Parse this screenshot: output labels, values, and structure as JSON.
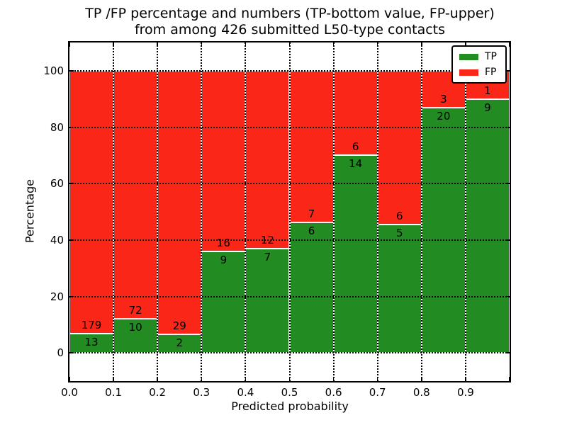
{
  "title": {
    "line1": "TP /FP percentage and numbers (TP-bottom value, FP-upper)",
    "line2": "from among 426 submitted L50-type contacts"
  },
  "axes": {
    "xlabel": "Predicted probability",
    "ylabel": "Percentage",
    "xtick_labels": [
      "0.0",
      "0.1",
      "0.2",
      "0.3",
      "0.4",
      "0.5",
      "0.6",
      "0.7",
      "0.8",
      "0.9"
    ],
    "ytick_labels": [
      "0",
      "20",
      "40",
      "60",
      "80",
      "100"
    ],
    "yticks": [
      0,
      20,
      40,
      60,
      80,
      100
    ],
    "ylim": [
      -10,
      110
    ],
    "xlim": [
      0,
      1
    ],
    "grid": "dotted"
  },
  "legend": {
    "position": "upper right",
    "items": [
      {
        "label": "TP",
        "color": "#228b22"
      },
      {
        "label": "FP",
        "color": "#fa2617"
      }
    ]
  },
  "chart_data": {
    "type": "bar",
    "stacked": true,
    "normalized": "each bin scaled to 100%",
    "title": "TP /FP percentage and numbers (TP-bottom value, FP-upper) from among 426 submitted L50-type contacts",
    "xlabel": "Predicted probability",
    "ylabel": "Percentage",
    "total_contacts": 426,
    "bins": [
      "0.0-0.1",
      "0.1-0.2",
      "0.2-0.3",
      "0.3-0.4",
      "0.4-0.5",
      "0.5-0.6",
      "0.6-0.7",
      "0.7-0.8",
      "0.8-0.9",
      "0.9-1.0"
    ],
    "series": [
      {
        "name": "TP",
        "position": "bottom",
        "color": "#228b22",
        "counts": [
          13,
          10,
          2,
          9,
          7,
          6,
          14,
          5,
          20,
          9
        ]
      },
      {
        "name": "FP",
        "position": "top",
        "color": "#fa2617",
        "counts": [
          179,
          72,
          29,
          16,
          12,
          7,
          6,
          6,
          3,
          1
        ]
      }
    ],
    "tp_percent": [
      6.8,
      12.2,
      6.5,
      36.0,
      36.8,
      46.2,
      70.0,
      45.5,
      87.0,
      90.0
    ],
    "ylim": [
      -10,
      110
    ],
    "grid": true,
    "legend_position": "upper right"
  }
}
